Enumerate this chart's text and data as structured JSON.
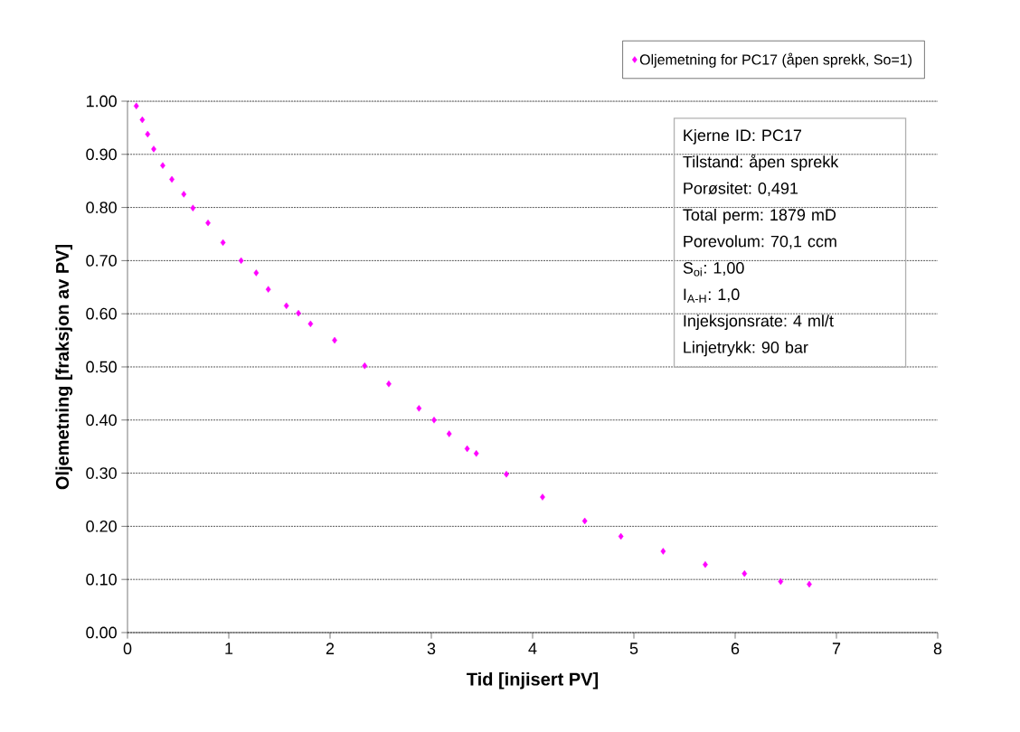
{
  "chart_data": {
    "type": "scatter",
    "xlabel": "Tid [injisert PV]",
    "ylabel": "Oljemetning [fraksjon av PV]",
    "series": [
      {
        "name": "Oljemetning for PC17 (åpen sprekk, So=1)",
        "color": "#ff00ff",
        "x": [
          0.087,
          0.146,
          0.199,
          0.259,
          0.348,
          0.438,
          0.556,
          0.646,
          0.795,
          0.943,
          1.122,
          1.271,
          1.39,
          1.569,
          1.688,
          1.807,
          2.045,
          2.342,
          2.58,
          2.878,
          3.027,
          3.176,
          3.354,
          3.444,
          3.741,
          4.098,
          4.515,
          4.872,
          5.289,
          5.705,
          6.092,
          6.449,
          6.732
        ],
        "values": [
          0.991,
          0.965,
          0.938,
          0.91,
          0.879,
          0.853,
          0.825,
          0.799,
          0.771,
          0.734,
          0.7,
          0.677,
          0.646,
          0.615,
          0.601,
          0.581,
          0.55,
          0.502,
          0.468,
          0.422,
          0.4,
          0.374,
          0.346,
          0.337,
          0.298,
          0.255,
          0.21,
          0.181,
          0.153,
          0.128,
          0.111,
          0.096,
          0.091
        ]
      }
    ],
    "xlim": [
      0,
      8
    ],
    "xticks": [
      0,
      1,
      2,
      3,
      4,
      5,
      6,
      7,
      8
    ],
    "ylim": [
      0,
      1
    ],
    "yticks": [
      {
        "value": 0,
        "label": "0.00"
      },
      {
        "value": 0.1,
        "label": "0.10"
      },
      {
        "value": 0.2,
        "label": "0.20"
      },
      {
        "value": 0.3,
        "label": "0.30"
      },
      {
        "value": 0.4,
        "label": "0.40"
      },
      {
        "value": 0.5,
        "label": "0.50"
      },
      {
        "value": 0.6,
        "label": "0.60"
      },
      {
        "value": 0.7,
        "label": "0.70"
      },
      {
        "value": 0.8,
        "label": "0.80"
      },
      {
        "value": 0.9,
        "label": "0.90"
      },
      {
        "value": 1,
        "label": "1.00"
      }
    ],
    "grid": "y",
    "legend": "top right",
    "marker": "diamond",
    "annotations": [
      "Kjerne ID: PC17",
      "Tilstand: åpen sprekk",
      "Porøsitet: 0,491",
      "Total perm: 1879 mD",
      "Porevolum: 70,1 ccm",
      "S$_{oi}$: 1,00",
      "I$_{A-H}$: 1,0",
      "Injeksjonsrate: 4 ml/t",
      "Linjetrykk: 90 bar"
    ]
  }
}
